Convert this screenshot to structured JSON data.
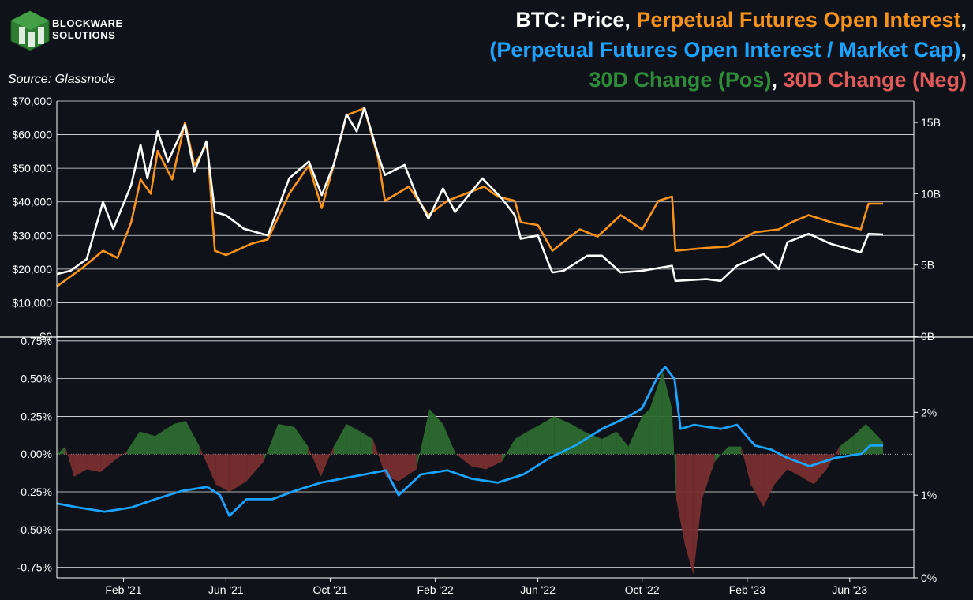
{
  "header": {
    "brand_line1": "BLOCKWARE",
    "brand_line2": "SOLUTIONS",
    "source": "Source: Glassnode",
    "title_parts": [
      {
        "text": "BTC: Price",
        "color": "#ffffff"
      },
      {
        "text": ", ",
        "color": "#ffffff"
      },
      {
        "text": "Perpetual Futures Open Interest",
        "color": "#f7931a"
      },
      {
        "text": ",",
        "color": "#ffffff"
      },
      {
        "text": "(Perpetual Futures Open Interest / Market Cap)",
        "color": "#1aa3ff"
      },
      {
        "text": ",",
        "color": "#ffffff"
      },
      {
        "text": "30D Change (Pos)",
        "color": "#2e8b3a"
      },
      {
        "text": ", ",
        "color": "#ffffff"
      },
      {
        "text": "30D Change (Neg)",
        "color": "#e05a5a"
      }
    ]
  },
  "colors": {
    "background": "#0f1218",
    "price": "#ffffff",
    "open_interest": "#f7931a",
    "oi_mcap": "#1aa3ff",
    "pos_change": "#2e6b30",
    "neg_change": "#7a2f2f",
    "grid": "#ffffff"
  },
  "chart_data": [
    {
      "type": "line",
      "panel": "top",
      "x_ticks": [
        "Feb '21",
        "Jun '21",
        "Oct '21",
        "Feb '22",
        "Jun '22",
        "Oct '22",
        "Feb '23",
        "Jun '23"
      ],
      "y_left_ticks": [
        "$0",
        "$10,000",
        "$20,000",
        "$30,000",
        "$40,000",
        "$50,000",
        "$60,000",
        "$70,000"
      ],
      "y_left_lim": [
        0,
        70000
      ],
      "y_right_ticks": [
        "0B",
        "5B",
        "10B",
        "15B"
      ],
      "y_right_lim": [
        0,
        16.5
      ],
      "x_range": [
        "2020-11-15",
        "2023-08-15"
      ],
      "series": [
        {
          "name": "BTC: Price",
          "axis": "left",
          "points": [
            [
              "2020-11-15",
              18500
            ],
            [
              "2020-12-01",
              19500
            ],
            [
              "2020-12-20",
              23000
            ],
            [
              "2021-01-08",
              40000
            ],
            [
              "2021-01-20",
              32000
            ],
            [
              "2021-02-10",
              45000
            ],
            [
              "2021-02-21",
              57000
            ],
            [
              "2021-03-01",
              47000
            ],
            [
              "2021-03-13",
              61000
            ],
            [
              "2021-03-25",
              52000
            ],
            [
              "2021-04-14",
              63000
            ],
            [
              "2021-04-25",
              49000
            ],
            [
              "2021-05-09",
              58000
            ],
            [
              "2021-05-19",
              37000
            ],
            [
              "2021-06-01",
              36000
            ],
            [
              "2021-06-22",
              32000
            ],
            [
              "2021-07-20",
              30000
            ],
            [
              "2021-08-14",
              47000
            ],
            [
              "2021-09-06",
              52000
            ],
            [
              "2021-09-21",
              42000
            ],
            [
              "2021-10-05",
              51000
            ],
            [
              "2021-10-20",
              66000
            ],
            [
              "2021-11-01",
              61000
            ],
            [
              "2021-11-10",
              68000
            ],
            [
              "2021-11-26",
              54000
            ],
            [
              "2021-12-04",
              48000
            ],
            [
              "2021-12-27",
              51000
            ],
            [
              "2022-01-10",
              42000
            ],
            [
              "2022-01-24",
              35000
            ],
            [
              "2022-02-10",
              44000
            ],
            [
              "2022-02-24",
              37000
            ],
            [
              "2022-03-28",
              47000
            ],
            [
              "2022-04-20",
              41000
            ],
            [
              "2022-05-05",
              36000
            ],
            [
              "2022-05-12",
              29000
            ],
            [
              "2022-06-01",
              30000
            ],
            [
              "2022-06-13",
              22000
            ],
            [
              "2022-06-18",
              19000
            ],
            [
              "2022-07-01",
              19500
            ],
            [
              "2022-07-29",
              24000
            ],
            [
              "2022-08-15",
              24000
            ],
            [
              "2022-09-06",
              19000
            ],
            [
              "2022-10-01",
              19500
            ],
            [
              "2022-11-05",
              21000
            ],
            [
              "2022-11-09",
              16500
            ],
            [
              "2022-12-15",
              17000
            ],
            [
              "2023-01-01",
              16500
            ],
            [
              "2023-01-20",
              21000
            ],
            [
              "2023-02-20",
              24500
            ],
            [
              "2023-03-10",
              20000
            ],
            [
              "2023-03-20",
              28000
            ],
            [
              "2023-04-14",
              30500
            ],
            [
              "2023-05-10",
              27500
            ],
            [
              "2023-06-14",
              25000
            ],
            [
              "2023-06-23",
              30500
            ],
            [
              "2023-07-10",
              30300
            ]
          ]
        },
        {
          "name": "Perpetual Futures Open Interest",
          "axis": "right",
          "points": [
            [
              "2020-11-15",
              3.5
            ],
            [
              "2020-12-15",
              4.8
            ],
            [
              "2021-01-08",
              6.0
            ],
            [
              "2021-01-25",
              5.5
            ],
            [
              "2021-02-10",
              8.0
            ],
            [
              "2021-02-21",
              11.0
            ],
            [
              "2021-03-05",
              10.0
            ],
            [
              "2021-03-13",
              13.0
            ],
            [
              "2021-03-30",
              11.0
            ],
            [
              "2021-04-14",
              15.0
            ],
            [
              "2021-04-25",
              12.0
            ],
            [
              "2021-05-10",
              13.5
            ],
            [
              "2021-05-19",
              6.0
            ],
            [
              "2021-06-01",
              5.7
            ],
            [
              "2021-07-01",
              6.5
            ],
            [
              "2021-07-20",
              6.8
            ],
            [
              "2021-08-14",
              10.0
            ],
            [
              "2021-09-06",
              12.0
            ],
            [
              "2021-09-21",
              9.0
            ],
            [
              "2021-10-05",
              12.0
            ],
            [
              "2021-10-20",
              15.5
            ],
            [
              "2021-11-10",
              16.0
            ],
            [
              "2021-11-26",
              12.5
            ],
            [
              "2021-12-04",
              9.5
            ],
            [
              "2022-01-01",
              10.5
            ],
            [
              "2022-01-24",
              8.5
            ],
            [
              "2022-02-15",
              9.5
            ],
            [
              "2022-03-30",
              10.5
            ],
            [
              "2022-04-15",
              9.8
            ],
            [
              "2022-05-05",
              9.5
            ],
            [
              "2022-05-12",
              8.0
            ],
            [
              "2022-06-01",
              7.8
            ],
            [
              "2022-06-18",
              6.0
            ],
            [
              "2022-07-20",
              7.5
            ],
            [
              "2022-08-10",
              7.0
            ],
            [
              "2022-09-06",
              8.5
            ],
            [
              "2022-10-01",
              7.5
            ],
            [
              "2022-10-20",
              9.5
            ],
            [
              "2022-11-05",
              9.8
            ],
            [
              "2022-11-09",
              6.0
            ],
            [
              "2022-12-15",
              6.2
            ],
            [
              "2023-01-10",
              6.3
            ],
            [
              "2023-02-10",
              7.3
            ],
            [
              "2023-03-10",
              7.5
            ],
            [
              "2023-03-25",
              8.0
            ],
            [
              "2023-04-14",
              8.5
            ],
            [
              "2023-05-10",
              8.0
            ],
            [
              "2023-06-14",
              7.5
            ],
            [
              "2023-06-23",
              9.3
            ],
            [
              "2023-07-10",
              9.3
            ]
          ]
        }
      ]
    },
    {
      "type": "area",
      "panel": "bottom",
      "x_ticks": [
        "Feb '21",
        "Jun '21",
        "Oct '21",
        "Feb '22",
        "Jun '22",
        "Oct '22",
        "Feb '23",
        "Jun '23"
      ],
      "y_left_ticks": [
        "-0.75%",
        "-0.50%",
        "-0.25%",
        "0.00%",
        "0.25%",
        "0.50%",
        "0.75%"
      ],
      "y_left_lim": [
        -0.82,
        0.77
      ],
      "y_right_ticks": [
        "0%",
        "1%",
        "2%"
      ],
      "y_right_lim": [
        0,
        2.9
      ],
      "series": [
        {
          "name": "30D Change (Pos) / 30D Change (Neg)",
          "axis": "left",
          "points": [
            [
              "2020-11-15",
              0.0
            ],
            [
              "2020-11-25",
              0.05
            ],
            [
              "2020-12-05",
              -0.15
            ],
            [
              "2020-12-20",
              -0.1
            ],
            [
              "2021-01-05",
              -0.12
            ],
            [
              "2021-01-20",
              -0.05
            ],
            [
              "2021-02-05",
              0.02
            ],
            [
              "2021-02-20",
              0.15
            ],
            [
              "2021-03-10",
              0.12
            ],
            [
              "2021-04-01",
              0.2
            ],
            [
              "2021-04-15",
              0.22
            ],
            [
              "2021-05-01",
              0.05
            ],
            [
              "2021-05-20",
              -0.2
            ],
            [
              "2021-06-05",
              -0.25
            ],
            [
              "2021-06-25",
              -0.18
            ],
            [
              "2021-07-15",
              -0.05
            ],
            [
              "2021-08-01",
              0.2
            ],
            [
              "2021-08-20",
              0.18
            ],
            [
              "2021-09-05",
              0.05
            ],
            [
              "2021-09-20",
              -0.15
            ],
            [
              "2021-10-05",
              0.05
            ],
            [
              "2021-10-20",
              0.2
            ],
            [
              "2021-11-05",
              0.15
            ],
            [
              "2021-11-20",
              0.1
            ],
            [
              "2021-12-05",
              -0.15
            ],
            [
              "2021-12-20",
              -0.18
            ],
            [
              "2022-01-10",
              -0.1
            ],
            [
              "2022-01-25",
              0.3
            ],
            [
              "2022-02-10",
              0.2
            ],
            [
              "2022-02-25",
              0.0
            ],
            [
              "2022-03-15",
              -0.08
            ],
            [
              "2022-04-01",
              -0.1
            ],
            [
              "2022-04-20",
              -0.05
            ],
            [
              "2022-05-05",
              0.1
            ],
            [
              "2022-05-20",
              0.15
            ],
            [
              "2022-06-05",
              0.2
            ],
            [
              "2022-06-20",
              0.25
            ],
            [
              "2022-07-10",
              0.2
            ],
            [
              "2022-07-25",
              0.15
            ],
            [
              "2022-08-15",
              0.1
            ],
            [
              "2022-09-01",
              0.15
            ],
            [
              "2022-09-15",
              0.05
            ],
            [
              "2022-10-01",
              0.25
            ],
            [
              "2022-10-10",
              0.3
            ],
            [
              "2022-10-25",
              0.55
            ],
            [
              "2022-11-05",
              0.3
            ],
            [
              "2022-11-10",
              -0.3
            ],
            [
              "2022-11-20",
              -0.6
            ],
            [
              "2022-11-30",
              -0.8
            ],
            [
              "2022-12-10",
              -0.3
            ],
            [
              "2022-12-25",
              -0.05
            ],
            [
              "2023-01-10",
              0.05
            ],
            [
              "2023-01-25",
              0.05
            ],
            [
              "2023-02-05",
              -0.2
            ],
            [
              "2023-02-20",
              -0.35
            ],
            [
              "2023-03-05",
              -0.2
            ],
            [
              "2023-03-20",
              -0.1
            ],
            [
              "2023-04-05",
              -0.15
            ],
            [
              "2023-04-20",
              -0.2
            ],
            [
              "2023-05-05",
              -0.1
            ],
            [
              "2023-05-20",
              0.05
            ],
            [
              "2023-06-05",
              0.12
            ],
            [
              "2023-06-20",
              0.2
            ],
            [
              "2023-07-10",
              0.08
            ]
          ]
        },
        {
          "name": "(Perpetual Futures Open Interest / Market Cap)",
          "axis": "right",
          "points": [
            [
              "2020-11-15",
              0.9
            ],
            [
              "2020-12-10",
              0.85
            ],
            [
              "2021-01-10",
              0.8
            ],
            [
              "2021-02-10",
              0.85
            ],
            [
              "2021-03-10",
              0.95
            ],
            [
              "2021-04-10",
              1.05
            ],
            [
              "2021-05-10",
              1.1
            ],
            [
              "2021-05-25",
              1.0
            ],
            [
              "2021-06-05",
              0.75
            ],
            [
              "2021-06-25",
              0.95
            ],
            [
              "2021-07-25",
              0.95
            ],
            [
              "2021-08-20",
              1.05
            ],
            [
              "2021-09-20",
              1.15
            ],
            [
              "2021-10-15",
              1.2
            ],
            [
              "2021-11-10",
              1.25
            ],
            [
              "2021-12-05",
              1.3
            ],
            [
              "2021-12-20",
              1.0
            ],
            [
              "2022-01-15",
              1.25
            ],
            [
              "2022-02-15",
              1.3
            ],
            [
              "2022-03-15",
              1.2
            ],
            [
              "2022-04-15",
              1.15
            ],
            [
              "2022-05-15",
              1.25
            ],
            [
              "2022-06-15",
              1.45
            ],
            [
              "2022-07-15",
              1.6
            ],
            [
              "2022-08-15",
              1.8
            ],
            [
              "2022-09-15",
              1.95
            ],
            [
              "2022-10-01",
              2.05
            ],
            [
              "2022-10-20",
              2.45
            ],
            [
              "2022-10-28",
              2.55
            ],
            [
              "2022-11-08",
              2.4
            ],
            [
              "2022-11-15",
              1.8
            ],
            [
              "2022-12-01",
              1.85
            ],
            [
              "2023-01-01",
              1.8
            ],
            [
              "2023-01-20",
              1.85
            ],
            [
              "2023-02-10",
              1.6
            ],
            [
              "2023-03-01",
              1.55
            ],
            [
              "2023-03-20",
              1.45
            ],
            [
              "2023-04-15",
              1.35
            ],
            [
              "2023-05-15",
              1.45
            ],
            [
              "2023-06-15",
              1.5
            ],
            [
              "2023-06-25",
              1.6
            ],
            [
              "2023-07-10",
              1.6
            ]
          ]
        }
      ]
    }
  ]
}
